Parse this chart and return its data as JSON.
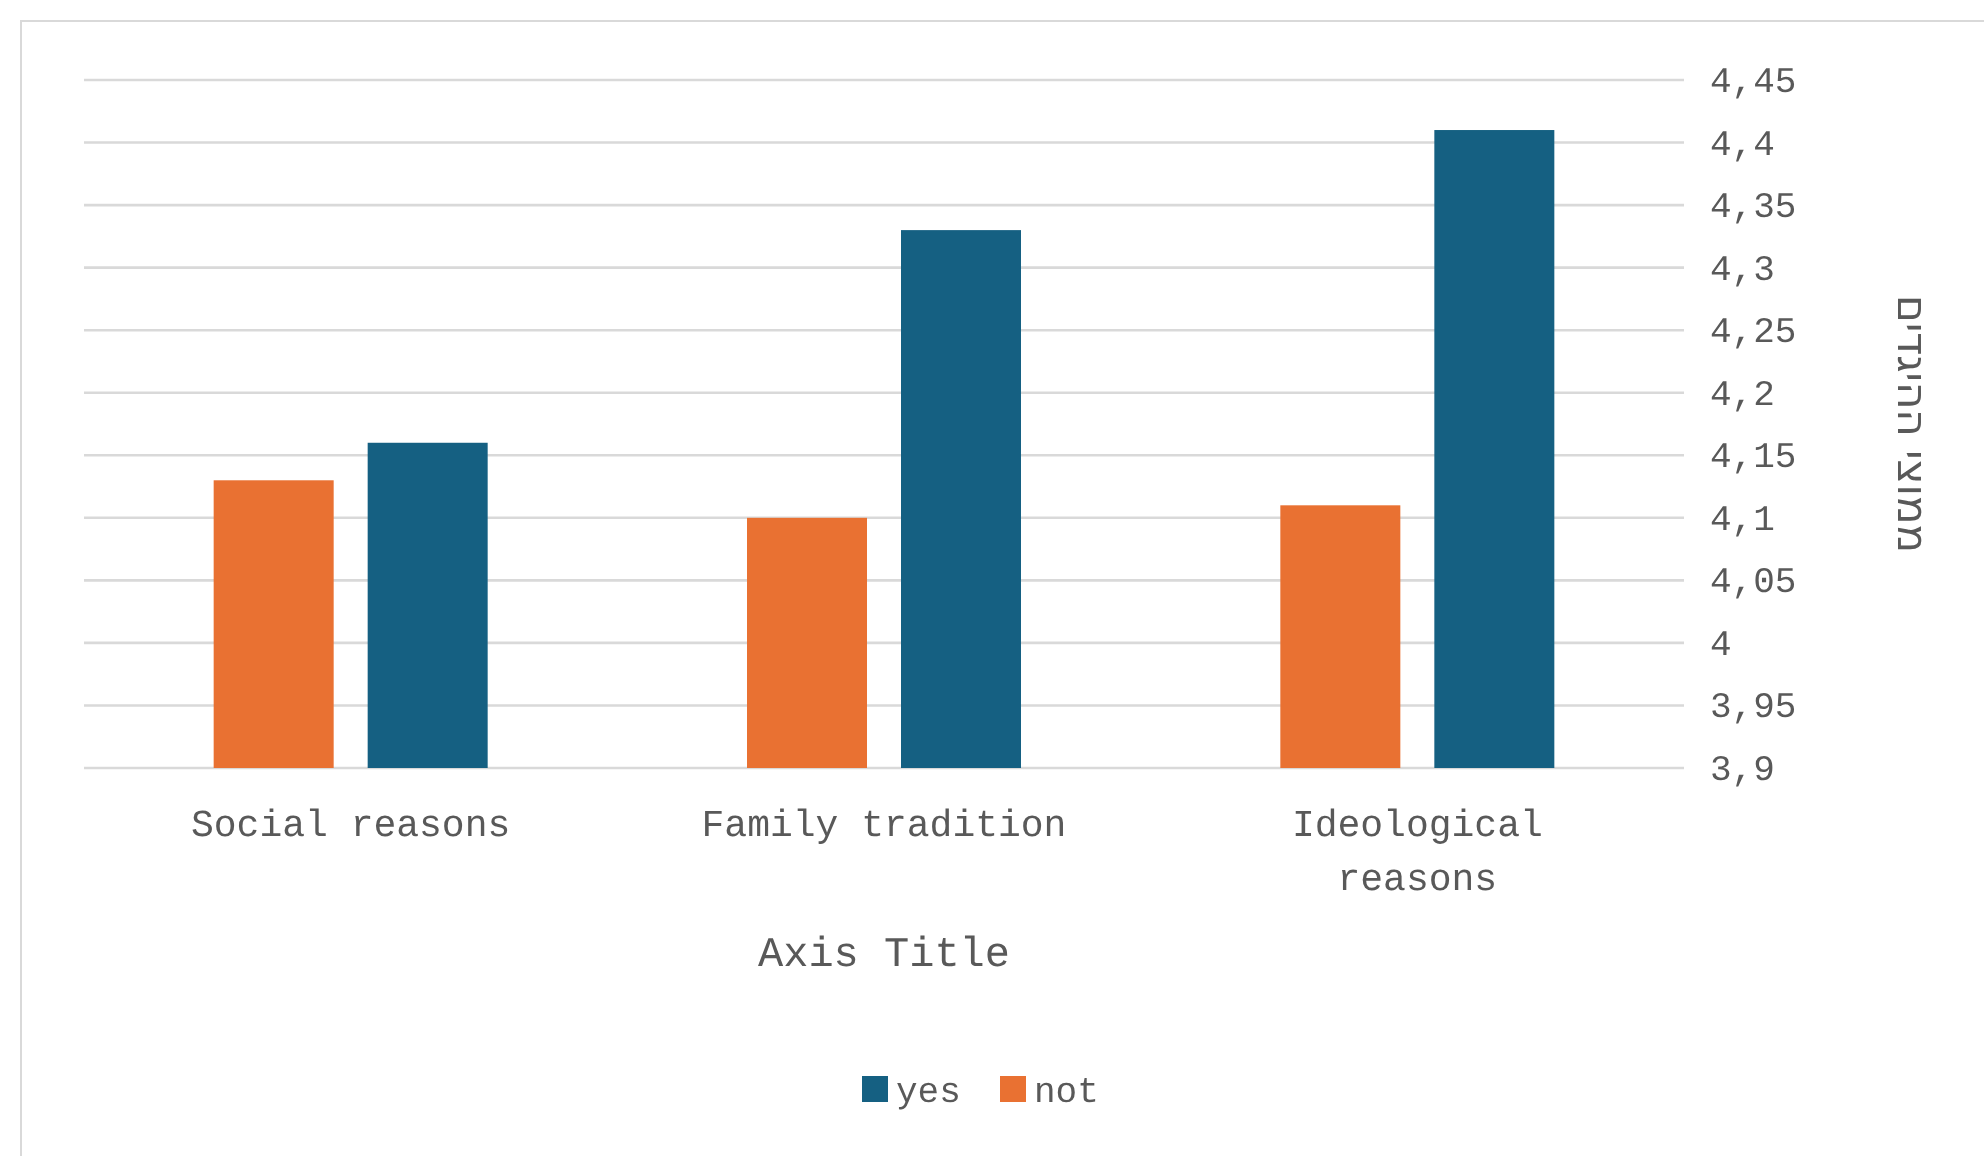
{
  "chart_data": {
    "type": "bar",
    "xlabel": "Axis Title",
    "ylabel": "ממוצי ההיגדים",
    "categories": [
      "Social reasons",
      "Family tradition",
      "Ideological reasons"
    ],
    "series": [
      {
        "name": "not",
        "color": "#e97132",
        "values": [
          4.13,
          4.1,
          4.11
        ]
      },
      {
        "name": "yes",
        "color": "#156082",
        "values": [
          4.16,
          4.33,
          4.41
        ]
      }
    ],
    "ylim": [
      3.9,
      4.45
    ],
    "yticks": [
      {
        "value": 3.9,
        "label": "3,9"
      },
      {
        "value": 3.95,
        "label": "3,95"
      },
      4,
      {
        "value": 4.05,
        "label": "4,05"
      },
      {
        "value": 4.1,
        "label": "4,1"
      },
      {
        "value": 4.15,
        "label": "4,15"
      },
      {
        "value": 4.2,
        "label": "4,2"
      },
      {
        "value": 4.25,
        "label": "4,25"
      },
      {
        "value": 4.3,
        "label": "4,3"
      },
      {
        "value": 4.35,
        "label": "4,35"
      },
      {
        "value": 4.4,
        "label": "4,4"
      },
      {
        "value": 4.45,
        "label": "4,45"
      }
    ],
    "grid": "y",
    "legend": "bottom"
  }
}
